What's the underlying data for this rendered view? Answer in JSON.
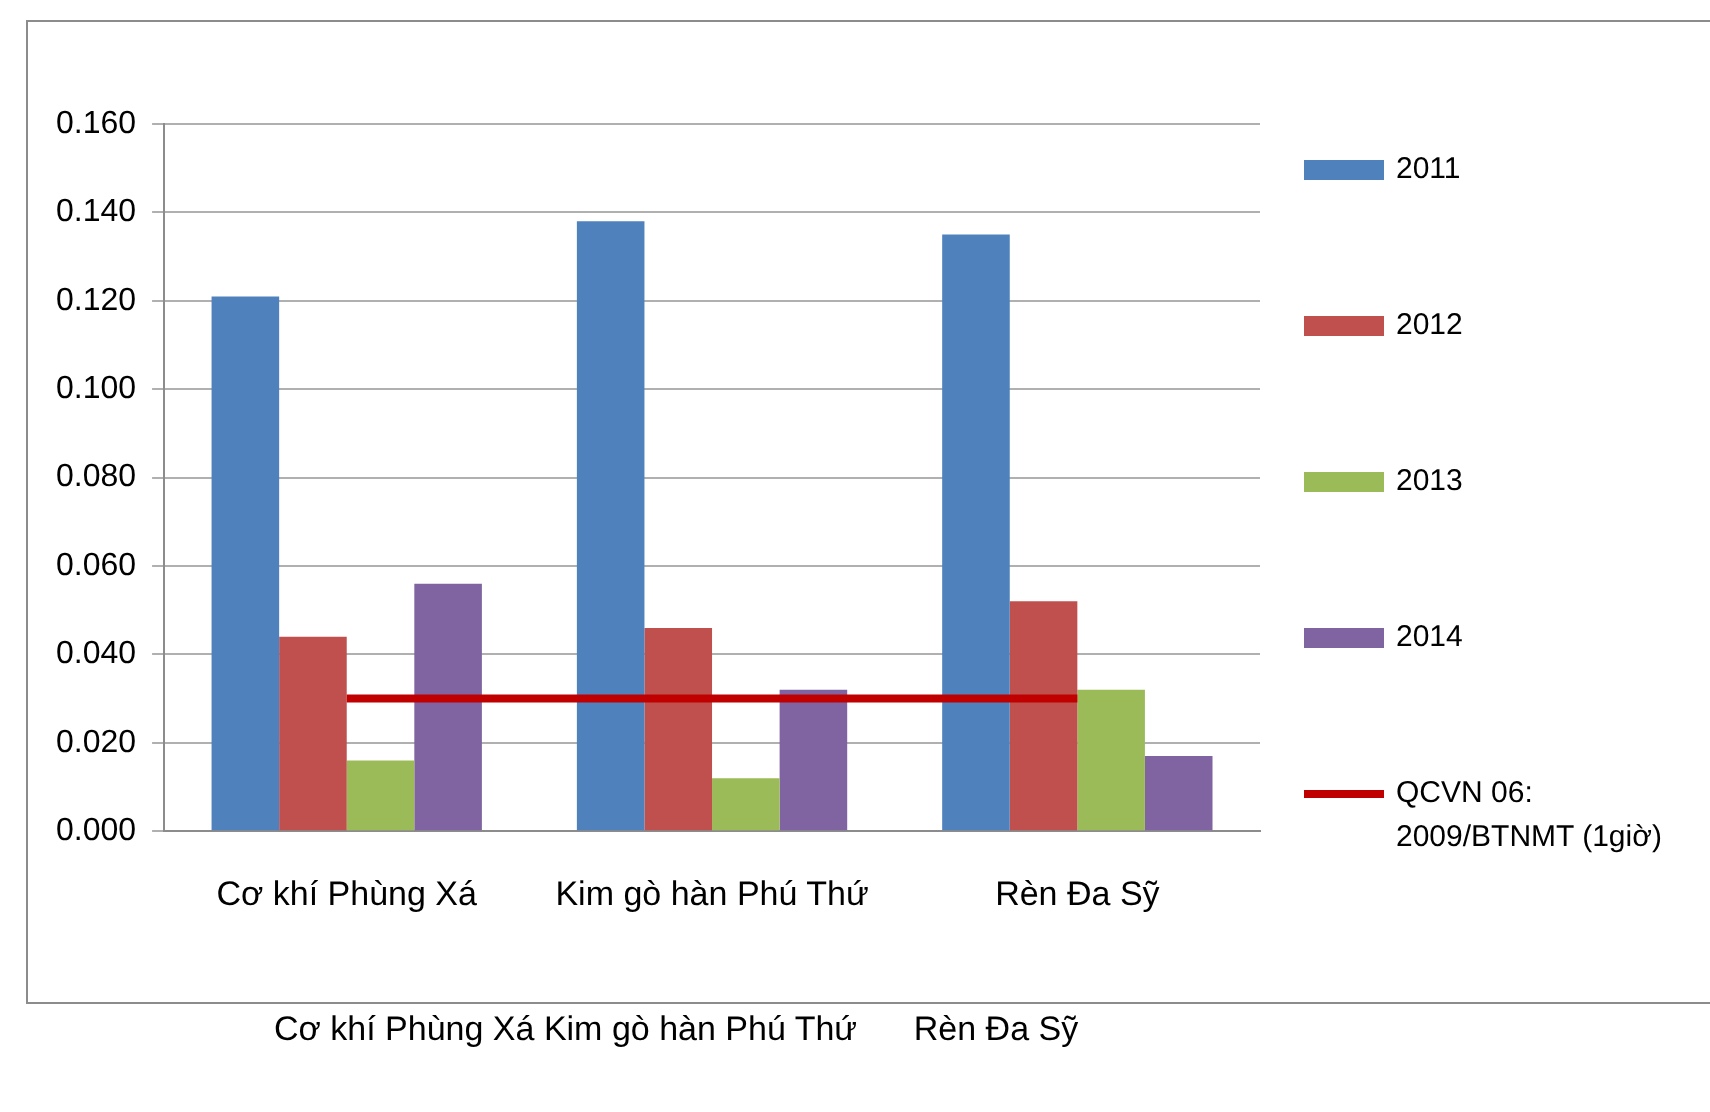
{
  "chart_data": {
    "type": "bar",
    "categories": [
      "Cơ khí Phùng Xá",
      "Kim gò hàn Phú Thứ",
      "Rèn Đa Sỹ"
    ],
    "series": [
      {
        "name": "2011",
        "color": "#4f81bd",
        "values": [
          0.121,
          0.138,
          0.135
        ]
      },
      {
        "name": "2012",
        "color": "#c0504d",
        "values": [
          0.044,
          0.046,
          0.052
        ]
      },
      {
        "name": "2013",
        "color": "#9bbb59",
        "values": [
          0.016,
          0.012,
          0.032
        ]
      },
      {
        "name": "2014",
        "color": "#8064a2",
        "values": [
          0.056,
          0.032,
          0.017
        ]
      },
      {
        "name": "QCVN 06: 2009/BTNMT (1giờ)",
        "type": "line",
        "color": "#c00000",
        "values": [
          0.03,
          0.03,
          0.03
        ]
      }
    ],
    "ylim": [
      0,
      0.16
    ],
    "yticks": [
      {
        "value": 0,
        "label": "0.000"
      },
      {
        "value": 0.02,
        "label": "0.020"
      },
      {
        "value": 0.04,
        "label": "0.040"
      },
      {
        "value": 0.06,
        "label": "0.060"
      },
      {
        "value": 0.08,
        "label": "0.080"
      },
      {
        "value": 0.1,
        "label": "0.100"
      },
      {
        "value": 0.12,
        "label": "0.120"
      },
      {
        "value": 0.14,
        "label": "0.140"
      },
      {
        "value": 0.16,
        "label": "0.160"
      }
    ],
    "grid": "y",
    "legend": "right",
    "marker": "none",
    "annotations": [
      "Cơ khí Phùng Xá Kim gò hàn Phú Thứ      Rèn Đa Sỹ"
    ]
  }
}
